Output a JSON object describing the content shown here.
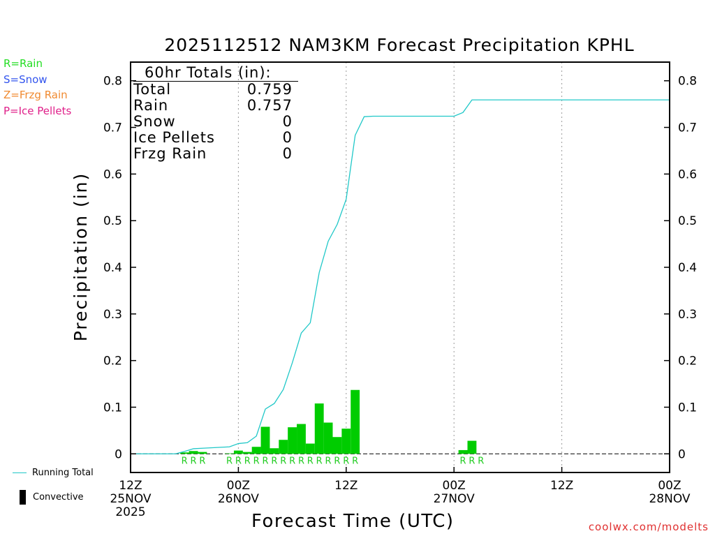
{
  "page": {
    "title": "2025112512 NAM3KM Forecast Precipitation KPHL",
    "credit": "coolwx.com/modelts",
    "legend_top": [
      {
        "label": "R=Rain",
        "color": "#22dd22"
      },
      {
        "label": "S=Snow",
        "color": "#3355ee"
      },
      {
        "label": "Z=Frzg Rain",
        "color": "#f08a30"
      },
      {
        "label": "P=Ice Pellets",
        "color": "#e0208a"
      }
    ],
    "legend_bottom": {
      "running_total": "Running Total",
      "convective": "Convective"
    }
  },
  "totals": {
    "heading": "60hr Totals (in):",
    "rows": [
      {
        "label": "Total",
        "value": "0.759"
      },
      {
        "label": "Rain",
        "value": "0.757"
      },
      {
        "label": "Snow",
        "value": "0"
      },
      {
        "label": "Ice Pellets",
        "value": "0"
      },
      {
        "label": "Frzg Rain",
        "value": "0"
      }
    ]
  },
  "chart_data": {
    "type": "bar",
    "title": "2025112512 NAM3KM Forecast Precipitation KPHL",
    "xlabel": "Forecast Time (UTC)",
    "ylabel": "Precipitation (in)",
    "x_unit": "hours from 12Z 25NOV 2025",
    "xlim": [
      0,
      60
    ],
    "ylim": [
      -0.04,
      0.84
    ],
    "yticks": [
      0,
      0.1,
      0.2,
      0.3,
      0.4,
      0.5,
      0.6,
      0.7,
      0.8
    ],
    "ytick_labels": [
      "0",
      "0.1",
      "0.2",
      "0.3",
      "0.4",
      "0.5",
      "0.6",
      "0.7",
      "0.8"
    ],
    "xticks": [
      {
        "hour": 0,
        "label": "12Z",
        "sub": "25NOV",
        "sub2": "2025"
      },
      {
        "hour": 12,
        "label": "00Z",
        "sub": "26NOV"
      },
      {
        "hour": 24,
        "label": "12Z",
        "sub": ""
      },
      {
        "hour": 36,
        "label": "00Z",
        "sub": "27NOV"
      },
      {
        "hour": 48,
        "label": "12Z",
        "sub": ""
      },
      {
        "hour": 60,
        "label": "00Z",
        "sub": "28NOV"
      }
    ],
    "grid": "dotted vertical at 00Z/12Z",
    "series": [
      {
        "name": "Hourly Rain",
        "color": "#00cc00",
        "hours": [
          6,
          7,
          8,
          11,
          12,
          13,
          14,
          15,
          16,
          17,
          18,
          19,
          20,
          21,
          22,
          23,
          24,
          25,
          37,
          38,
          39
        ],
        "values": [
          0.003,
          0.006,
          0.004,
          0.001,
          0.007,
          0.004,
          0.015,
          0.058,
          0.012,
          0.03,
          0.057,
          0.064,
          0.022,
          0.108,
          0.067,
          0.036,
          0.054,
          0.137,
          0.008,
          0.028,
          0.0
        ],
        "types": [
          "R",
          "R",
          "R",
          "R",
          "R",
          "R",
          "R",
          "R",
          "R",
          "R",
          "R",
          "R",
          "R",
          "R",
          "R",
          "R",
          "R",
          "R",
          "R",
          "R",
          "R"
        ]
      },
      {
        "name": "Running Total",
        "color": "#20c8c8",
        "hours": [
          0,
          5,
          6,
          7,
          8,
          11,
          12,
          13,
          14,
          15,
          16,
          17,
          18,
          19,
          20,
          21,
          22,
          23,
          24,
          25,
          26,
          27,
          36,
          37,
          38,
          60
        ],
        "values": [
          0,
          0,
          0.005,
          0.011,
          0.012,
          0.015,
          0.022,
          0.024,
          0.038,
          0.096,
          0.108,
          0.138,
          0.195,
          0.259,
          0.281,
          0.389,
          0.456,
          0.492,
          0.546,
          0.683,
          0.723,
          0.724,
          0.724,
          0.732,
          0.759,
          0.759
        ]
      }
    ],
    "precip_type_labels": [
      "R",
      "R",
      "R",
      "R",
      "R",
      "R",
      "R",
      "R",
      "R",
      "R",
      "R",
      "R",
      "R",
      "R",
      "R",
      "R",
      "R",
      "R",
      "R",
      "R",
      "R"
    ],
    "precip_type_hours": [
      6,
      7,
      8,
      11,
      12,
      13,
      14,
      15,
      16,
      17,
      18,
      19,
      20,
      21,
      22,
      23,
      24,
      25,
      37,
      38,
      39
    ]
  }
}
